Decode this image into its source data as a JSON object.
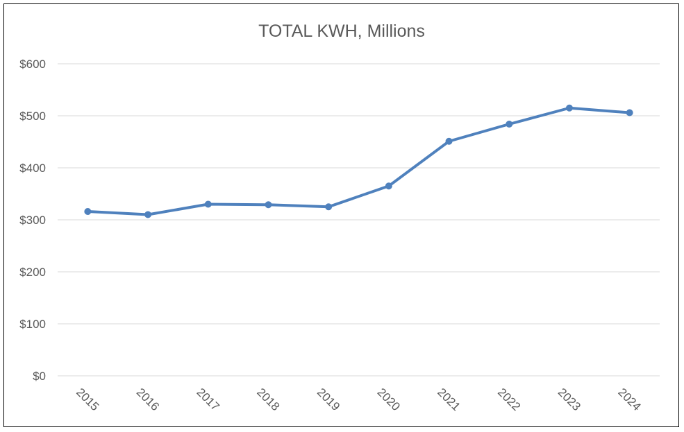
{
  "chart_data": {
    "type": "line",
    "title": "TOTAL KWH, Millions",
    "xlabel": "",
    "ylabel": "",
    "categories": [
      "2015",
      "2016",
      "2017",
      "2018",
      "2019",
      "2020",
      "2021",
      "2022",
      "2023",
      "2024"
    ],
    "series": [
      {
        "values": [
          316,
          310,
          330,
          329,
          325,
          365,
          451,
          484,
          515,
          506
        ]
      }
    ],
    "ylim": [
      0,
      600
    ],
    "yticks": [
      0,
      100,
      200,
      300,
      400,
      500,
      600
    ],
    "ytick_labels": [
      "$0",
      "$100",
      "$200",
      "$300",
      "$400",
      "$500",
      "$600"
    ],
    "grid": true,
    "legend": "none",
    "line_color": "#4F81BD",
    "grid_color": "#D9D9D9",
    "text_color": "#595959"
  }
}
